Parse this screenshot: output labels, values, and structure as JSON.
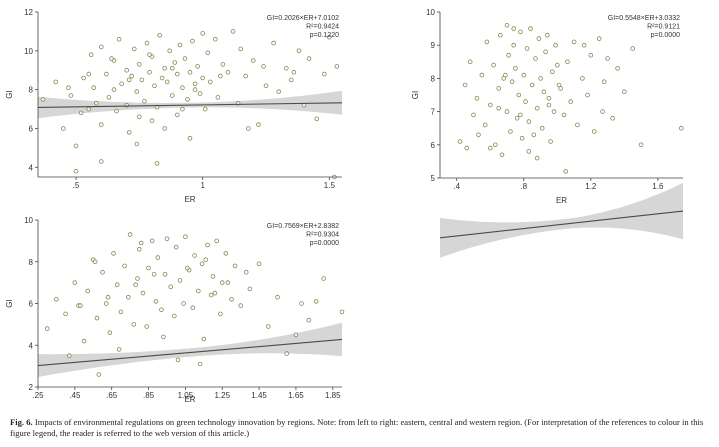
{
  "chart_data": [
    {
      "type": "scatter",
      "title": "",
      "xlabel": "ER",
      "ylabel": "GI",
      "xlim": [
        0.35,
        1.55
      ],
      "ylim": [
        3.5,
        12
      ],
      "xticks": [
        0.5,
        1,
        1.5
      ],
      "xtick_labels": [
        ".5",
        "1",
        "1.5"
      ],
      "yticks": [
        4,
        6,
        8,
        10,
        12
      ],
      "ytick_labels": [
        "4",
        "6",
        "8",
        "10",
        "12"
      ],
      "annotations": [
        "GI=0.2026×ER+7.0102",
        "R²=0.9424",
        "p=0.1220"
      ],
      "fit": {
        "slope": 0.2026,
        "intercept": 7.0102,
        "band_half_width": [
          0.55,
          0.12,
          0.62
        ]
      },
      "grid": false,
      "legend": "none",
      "series": [
        {
          "x": [
            0.37,
            0.42,
            0.45,
            0.48,
            0.5,
            0.5,
            0.52,
            0.53,
            0.55,
            0.56,
            0.57,
            0.58,
            0.6,
            0.6,
            0.62,
            0.63,
            0.65,
            0.65,
            0.66,
            0.67,
            0.68,
            0.7,
            0.7,
            0.71,
            0.72,
            0.73,
            0.74,
            0.75,
            0.75,
            0.76,
            0.77,
            0.78,
            0.79,
            0.8,
            0.8,
            0.81,
            0.82,
            0.83,
            0.84,
            0.85,
            0.85,
            0.86,
            0.87,
            0.88,
            0.89,
            0.9,
            0.9,
            0.91,
            0.92,
            0.93,
            0.94,
            0.95,
            0.95,
            0.96,
            0.97,
            0.98,
            0.99,
            1.0,
            1.0,
            1.01,
            1.02,
            1.03,
            1.05,
            1.06,
            1.08,
            1.1,
            1.12,
            1.14,
            1.15,
            1.17,
            1.2,
            1.22,
            1.25,
            1.28,
            1.3,
            1.33,
            1.35,
            1.38,
            1.4,
            1.42,
            1.45,
            1.48,
            1.5,
            1.52,
            1.53,
            0.6,
            0.74,
            0.82,
            0.92,
            1.18,
            0.47,
            0.55,
            0.64,
            0.71,
            0.79,
            0.88,
            0.97,
            1.07,
            1.24,
            1.36
          ],
          "y": [
            7.5,
            8.4,
            6.0,
            7.7,
            3.8,
            5.1,
            6.8,
            8.6,
            7.0,
            9.8,
            8.1,
            7.3,
            10.2,
            6.2,
            8.8,
            7.6,
            9.5,
            8.0,
            6.9,
            10.6,
            8.3,
            7.2,
            9.0,
            5.8,
            8.7,
            10.1,
            7.9,
            6.6,
            9.3,
            8.5,
            7.4,
            10.4,
            8.9,
            6.4,
            9.7,
            8.2,
            7.1,
            10.8,
            8.6,
            9.1,
            6.0,
            8.4,
            10.0,
            7.7,
            9.4,
            8.8,
            6.7,
            10.3,
            8.1,
            9.6,
            7.5,
            8.9,
            5.5,
            10.5,
            8.3,
            9.2,
            7.8,
            10.9,
            8.6,
            7.0,
            9.9,
            8.4,
            10.6,
            7.6,
            9.3,
            8.9,
            11.0,
            7.3,
            10.1,
            8.7,
            9.5,
            6.2,
            8.2,
            10.4,
            7.9,
            9.1,
            8.5,
            10.0,
            7.2,
            9.6,
            6.5,
            8.8,
            10.7,
            3.5,
            9.2,
            4.3,
            5.2,
            4.2,
            7.0,
            6.0,
            8.1,
            8.8,
            9.6,
            8.5,
            9.8,
            9.1,
            8.0,
            8.7,
            9.2,
            8.9
          ]
        }
      ]
    },
    {
      "type": "scatter",
      "title": "",
      "xlabel": "ER",
      "ylabel": "GI",
      "xlim": [
        0.3,
        1.75
      ],
      "ylim": [
        5,
        10
      ],
      "xticks": [
        0.4,
        0.8,
        1.2,
        1.6
      ],
      "xtick_labels": [
        ".4",
        ".8",
        "1.2",
        "1.6"
      ],
      "yticks": [
        5,
        6,
        7,
        8,
        9,
        10
      ],
      "ytick_labels": [
        "5",
        "6",
        "7",
        "8",
        "9",
        "10"
      ],
      "annotations": [
        "GI=0.5548×ER+3.0332",
        "R²=0.9121",
        "p=0.0000"
      ],
      "fit": {
        "slope": 0.5548,
        "intercept": 3.0332,
        "band_half_width": [
          0.6,
          0.15,
          0.85
        ]
      },
      "grid": false,
      "legend": "none",
      "series": [
        {
          "x": [
            0.42,
            0.45,
            0.48,
            0.5,
            0.52,
            0.55,
            0.57,
            0.58,
            0.6,
            0.62,
            0.63,
            0.65,
            0.66,
            0.67,
            0.68,
            0.7,
            0.7,
            0.71,
            0.72,
            0.73,
            0.74,
            0.75,
            0.76,
            0.77,
            0.78,
            0.79,
            0.8,
            0.81,
            0.82,
            0.83,
            0.84,
            0.85,
            0.86,
            0.87,
            0.88,
            0.89,
            0.9,
            0.91,
            0.92,
            0.93,
            0.94,
            0.95,
            0.96,
            0.97,
            0.98,
            0.99,
            1.0,
            1.02,
            1.04,
            1.06,
            1.08,
            1.1,
            1.12,
            1.15,
            1.18,
            1.2,
            1.22,
            1.25,
            1.28,
            1.3,
            1.33,
            1.36,
            1.4,
            1.45,
            1.5,
            1.74,
            0.6,
            0.65,
            0.74,
            0.88,
            1.05,
            1.16,
            0.53,
            0.69,
            0.83,
            0.95,
            1.27,
            0.46,
            0.78,
            1.01
          ],
          "y": [
            6.1,
            7.8,
            8.5,
            6.9,
            7.4,
            8.1,
            6.6,
            9.1,
            7.2,
            8.4,
            6.0,
            7.7,
            9.3,
            5.7,
            8.0,
            9.6,
            7.0,
            8.7,
            6.4,
            7.9,
            9.0,
            8.3,
            6.8,
            7.5,
            9.4,
            6.2,
            8.1,
            7.3,
            8.9,
            6.7,
            9.5,
            7.8,
            6.3,
            8.6,
            7.1,
            9.2,
            8.0,
            6.5,
            7.6,
            8.8,
            9.3,
            7.4,
            6.1,
            8.2,
            7.0,
            9.0,
            8.4,
            7.7,
            6.9,
            8.5,
            7.3,
            9.1,
            6.6,
            8.0,
            7.5,
            8.7,
            6.4,
            9.2,
            7.9,
            8.6,
            6.8,
            8.3,
            7.6,
            8.9,
            6.0,
            6.5,
            5.9,
            7.1,
            9.5,
            5.6,
            5.2,
            9.0,
            6.3,
            8.1,
            5.8,
            7.2,
            7.0,
            5.9,
            6.9,
            7.8
          ]
        }
      ]
    },
    {
      "type": "scatter",
      "title": "",
      "xlabel": "ER",
      "ylabel": "GI",
      "xlim": [
        0.25,
        1.9
      ],
      "ylim": [
        2,
        10
      ],
      "xticks": [
        0.25,
        0.45,
        0.65,
        0.85,
        1.05,
        1.25,
        1.45,
        1.65,
        1.85
      ],
      "xtick_labels": [
        ".25",
        ".45",
        ".65",
        ".85",
        "1.05",
        "1.25",
        "1.45",
        "1.65",
        "1.85"
      ],
      "yticks": [
        2,
        4,
        6,
        8,
        10
      ],
      "ytick_labels": [
        "2",
        "4",
        "6",
        "8",
        "10"
      ],
      "annotations": [
        "GI=0.7569×ER+2.8382",
        "R²=0.9304",
        "p=0.0000"
      ],
      "fit": {
        "slope": 0.7569,
        "intercept": 2.8382,
        "band_half_width": [
          0.55,
          0.2,
          0.8
        ]
      },
      "grid": false,
      "legend": "none",
      "series": [
        {
          "x": [
            0.3,
            0.35,
            0.4,
            0.42,
            0.45,
            0.47,
            0.5,
            0.52,
            0.55,
            0.57,
            0.6,
            0.62,
            0.64,
            0.66,
            0.68,
            0.7,
            0.72,
            0.74,
            0.75,
            0.77,
            0.79,
            0.8,
            0.82,
            0.84,
            0.85,
            0.87,
            0.89,
            0.9,
            0.92,
            0.94,
            0.95,
            0.97,
            0.99,
            1.0,
            1.02,
            1.04,
            1.05,
            1.07,
            1.09,
            1.1,
            1.12,
            1.14,
            1.15,
            1.17,
            1.19,
            1.2,
            1.22,
            1.24,
            1.25,
            1.27,
            1.3,
            1.32,
            1.35,
            1.38,
            1.4,
            1.45,
            1.5,
            1.55,
            1.6,
            1.65,
            1.68,
            1.72,
            1.76,
            1.8,
            1.9,
            0.48,
            0.58,
            0.69,
            0.81,
            0.93,
            1.01,
            1.13,
            0.56,
            0.78,
            1.06,
            1.21,
            0.63,
            0.88,
            1.16,
            1.28
          ],
          "y": [
            4.8,
            6.2,
            5.5,
            3.5,
            7.0,
            5.9,
            4.2,
            6.6,
            8.1,
            5.3,
            7.5,
            6.0,
            4.6,
            8.4,
            6.9,
            5.6,
            7.8,
            6.3,
            9.3,
            5.0,
            7.2,
            8.6,
            6.5,
            4.9,
            7.7,
            9.0,
            6.1,
            8.2,
            5.7,
            7.4,
            9.1,
            6.8,
            5.4,
            8.7,
            7.1,
            6.0,
            9.2,
            7.6,
            5.8,
            8.3,
            6.6,
            7.9,
            4.3,
            8.8,
            6.4,
            7.3,
            9.0,
            5.5,
            7.0,
            8.4,
            6.2,
            7.8,
            5.9,
            7.5,
            6.7,
            7.9,
            4.9,
            6.3,
            3.6,
            4.5,
            6.0,
            5.2,
            6.1,
            7.2,
            5.6,
            5.9,
            2.6,
            3.8,
            8.9,
            4.4,
            3.3,
            3.1,
            8.0,
            6.9,
            7.7,
            6.5,
            6.3,
            7.4,
            8.1,
            7.0
          ]
        }
      ]
    }
  ],
  "caption": {
    "label": "Fig. 6.",
    "text": "Impacts of environmental regulations on green technology innovation by regions. Note: from left to right: eastern, central and western region. (For interpretation of the references to colour in this figure legend, the reader is referred to the web version of this article.)"
  }
}
